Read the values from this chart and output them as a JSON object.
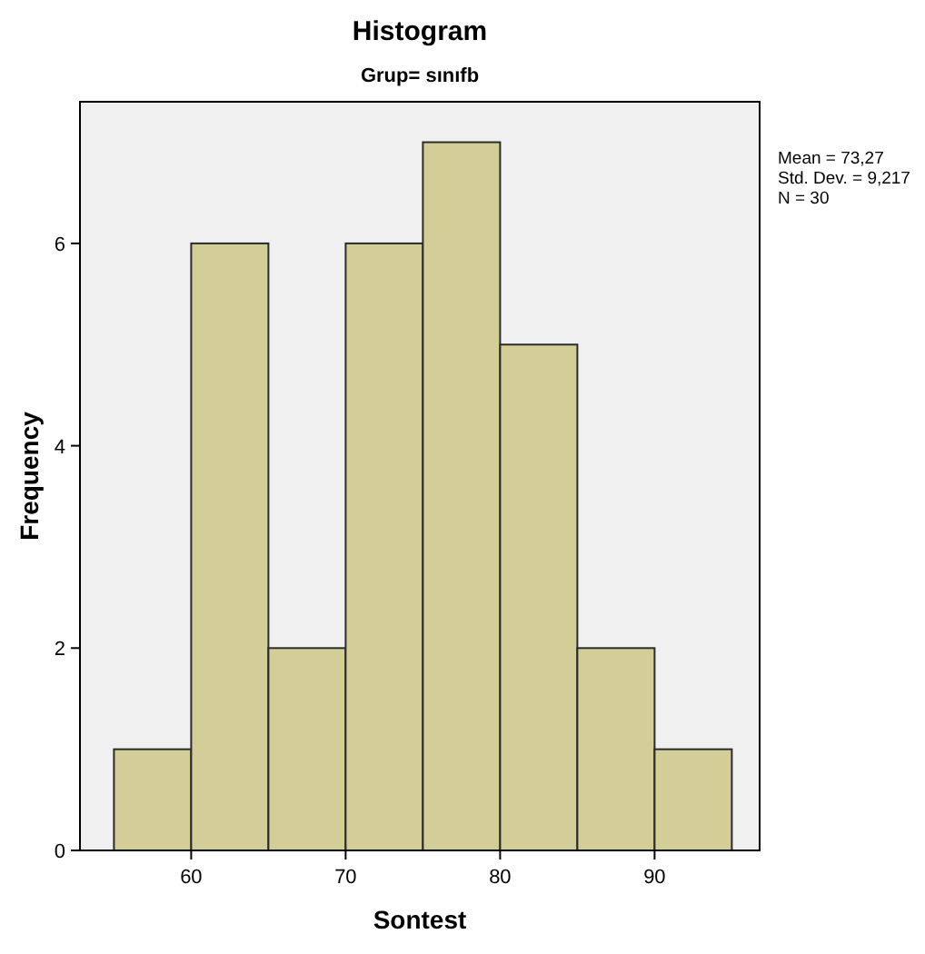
{
  "chart_data": {
    "type": "histogram",
    "title": "Histogram",
    "subtitle": "Grup= sınıfb",
    "xlabel": "Sontest",
    "ylabel": "Frequency",
    "bins": [
      55,
      60,
      65,
      70,
      75,
      80,
      85,
      90,
      95
    ],
    "values": [
      1,
      6,
      2,
      6,
      7,
      5,
      2,
      1
    ],
    "color": "#d3ce97",
    "xlim": [
      52.8,
      96.8
    ],
    "xticks": [
      60,
      70,
      80,
      90
    ],
    "ylim": [
      0,
      7.4
    ],
    "yticks": [
      0,
      2,
      4,
      6
    ],
    "grid": false,
    "annotations": [
      "Mean = 73,27",
      "Std. Dev. = 9,217",
      "N = 30"
    ]
  }
}
